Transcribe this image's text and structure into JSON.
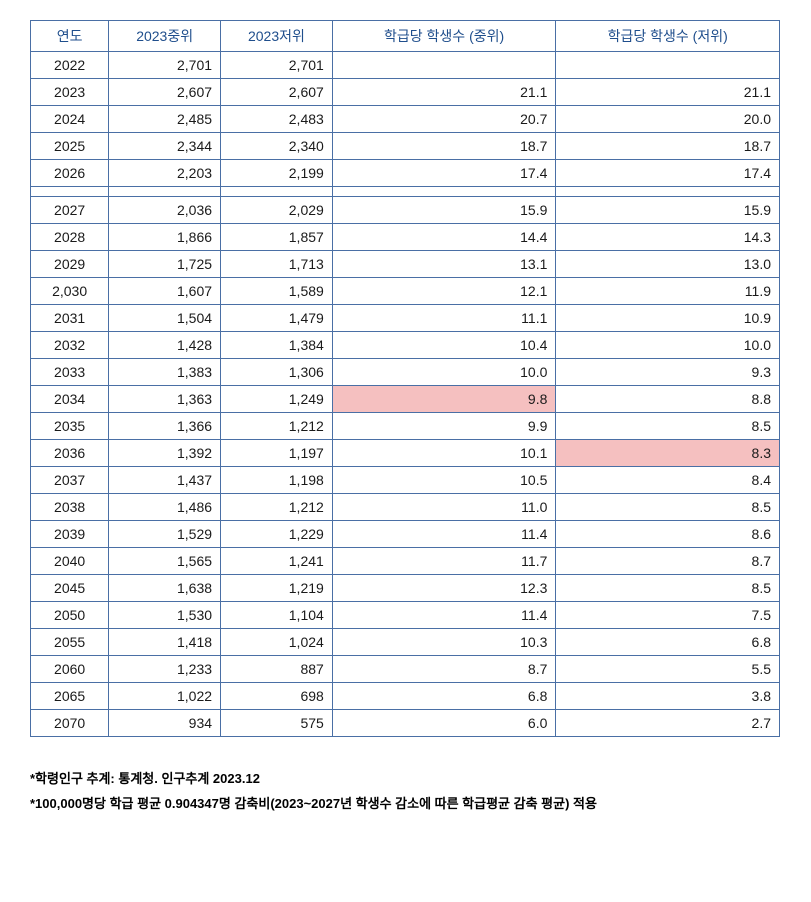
{
  "table": {
    "columns": [
      "연도",
      "2023중위",
      "2023저위",
      "학급당 학생수 (중위)",
      "학급당 학생수 (저위)"
    ],
    "header_color": "#1f4e8c",
    "border_color": "#4a6fa5",
    "highlight_bg": "#f5c0c0",
    "rows_block1": [
      {
        "year": "2022",
        "mid": "2,701",
        "low": "2,701",
        "spc_mid": "",
        "spc_low": ""
      },
      {
        "year": "2023",
        "mid": "2,607",
        "low": "2,607",
        "spc_mid": "21.1",
        "spc_low": "21.1"
      },
      {
        "year": "2024",
        "mid": "2,485",
        "low": "2,483",
        "spc_mid": "20.7",
        "spc_low": "20.0"
      },
      {
        "year": "2025",
        "mid": "2,344",
        "low": "2,340",
        "spc_mid": "18.7",
        "spc_low": "18.7"
      },
      {
        "year": "2026",
        "mid": "2,203",
        "low": "2,199",
        "spc_mid": "17.4",
        "spc_low": "17.4"
      }
    ],
    "rows_block2": [
      {
        "year": "2027",
        "mid": "2,036",
        "low": "2,029",
        "spc_mid": "15.9",
        "spc_low": "15.9"
      },
      {
        "year": "2028",
        "mid": "1,866",
        "low": "1,857",
        "spc_mid": "14.4",
        "spc_low": "14.3"
      },
      {
        "year": "2029",
        "mid": "1,725",
        "low": "1,713",
        "spc_mid": "13.1",
        "spc_low": "13.0"
      },
      {
        "year": "2,030",
        "mid": "1,607",
        "low": "1,589",
        "spc_mid": "12.1",
        "spc_low": "11.9"
      },
      {
        "year": "2031",
        "mid": "1,504",
        "low": "1,479",
        "spc_mid": "11.1",
        "spc_low": "10.9"
      },
      {
        "year": "2032",
        "mid": "1,428",
        "low": "1,384",
        "spc_mid": "10.4",
        "spc_low": "10.0"
      },
      {
        "year": "2033",
        "mid": "1,383",
        "low": "1,306",
        "spc_mid": "10.0",
        "spc_low": "9.3"
      },
      {
        "year": "2034",
        "mid": "1,363",
        "low": "1,249",
        "spc_mid": "9.8",
        "spc_low": "8.8",
        "hl_mid": true
      },
      {
        "year": "2035",
        "mid": "1,366",
        "low": "1,212",
        "spc_mid": "9.9",
        "spc_low": "8.5"
      },
      {
        "year": "2036",
        "mid": "1,392",
        "low": "1,197",
        "spc_mid": "10.1",
        "spc_low": "8.3",
        "hl_low": true
      },
      {
        "year": "2037",
        "mid": "1,437",
        "low": "1,198",
        "spc_mid": "10.5",
        "spc_low": "8.4"
      },
      {
        "year": "2038",
        "mid": "1,486",
        "low": "1,212",
        "spc_mid": "11.0",
        "spc_low": "8.5"
      },
      {
        "year": "2039",
        "mid": "1,529",
        "low": "1,229",
        "spc_mid": "11.4",
        "spc_low": "8.6"
      },
      {
        "year": "2040",
        "mid": "1,565",
        "low": "1,241",
        "spc_mid": "11.7",
        "spc_low": "8.7"
      },
      {
        "year": "2045",
        "mid": "1,638",
        "low": "1,219",
        "spc_mid": "12.3",
        "spc_low": "8.5"
      },
      {
        "year": "2050",
        "mid": "1,530",
        "low": "1,104",
        "spc_mid": "11.4",
        "spc_low": "7.5"
      },
      {
        "year": "2055",
        "mid": "1,418",
        "low": "1,024",
        "spc_mid": "10.3",
        "spc_low": "6.8"
      },
      {
        "year": "2060",
        "mid": "1,233",
        "low": "887",
        "spc_mid": "8.7",
        "spc_low": "5.5"
      },
      {
        "year": "2065",
        "mid": "1,022",
        "low": "698",
        "spc_mid": "6.8",
        "spc_low": "3.8"
      },
      {
        "year": "2070",
        "mid": "934",
        "low": "575",
        "spc_mid": "6.0",
        "spc_low": "2.7"
      }
    ]
  },
  "footnotes": {
    "note1": "*학령인구 추계: 통계청. 인구추계   2023.12",
    "note2": "*100,000명당 학급 평균 0.904347명 감축비(2023~2027년 학생수 감소에 따른 학급평균 감축 평균) 적용"
  }
}
